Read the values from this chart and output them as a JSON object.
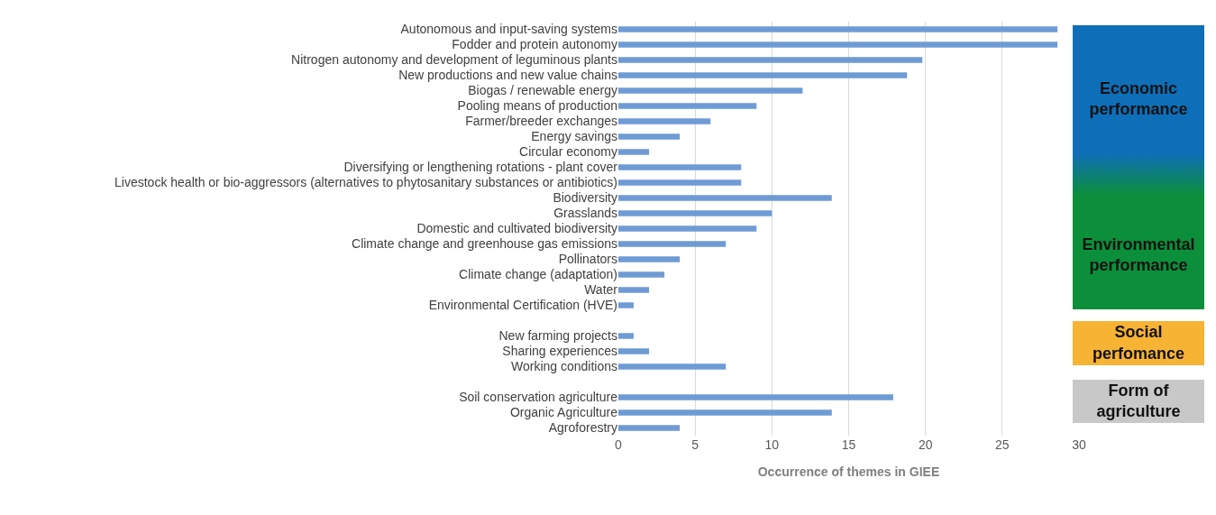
{
  "chart_data": {
    "type": "bar",
    "orientation": "horizontal",
    "xlabel": "Occurrence of themes in GIEE",
    "categories": [
      "Autonomous and input-saving systems",
      "Fodder and protein autonomy",
      "Nitrogen autonomy and development of leguminous plants",
      "New productions and new value chains",
      "Biogas / renewable energy",
      "Pooling means of production",
      "Farmer/breeder exchanges",
      "Energy savings",
      "Circular economy",
      "Diversifying or lengthening rotations - plant cover",
      "Livestock health or bio-aggressors (alternatives to phytosanitary substances or antibiotics)",
      "Biodiversity",
      "Grasslands",
      "Domestic and cultivated biodiversity",
      "Climate change and greenhouse gas emissions",
      "Pollinators",
      "Climate change (adaptation)",
      "Water",
      "Environmental Certification (HVE)",
      null,
      "New farming projects",
      "Sharing experiences",
      "Working conditions",
      null,
      "Soil conservation agriculture",
      "Organic Agriculture",
      "Agroforestry"
    ],
    "values": [
      28.6,
      28.6,
      19.8,
      18.8,
      12,
      9,
      6,
      4,
      2,
      8,
      8,
      13.9,
      10,
      9,
      7,
      4,
      3,
      2,
      1,
      null,
      1,
      2,
      7,
      null,
      17.9,
      13.9,
      4
    ],
    "color": "#6f9bd5",
    "xlim": [
      0,
      30
    ],
    "xticks": [
      0,
      5,
      10,
      15,
      20,
      25,
      30
    ],
    "grid": "x",
    "legend": false,
    "annotations": [
      "Economic performance",
      "Environmental performance",
      "Social perfomance",
      "Form of agriculture"
    ]
  }
}
